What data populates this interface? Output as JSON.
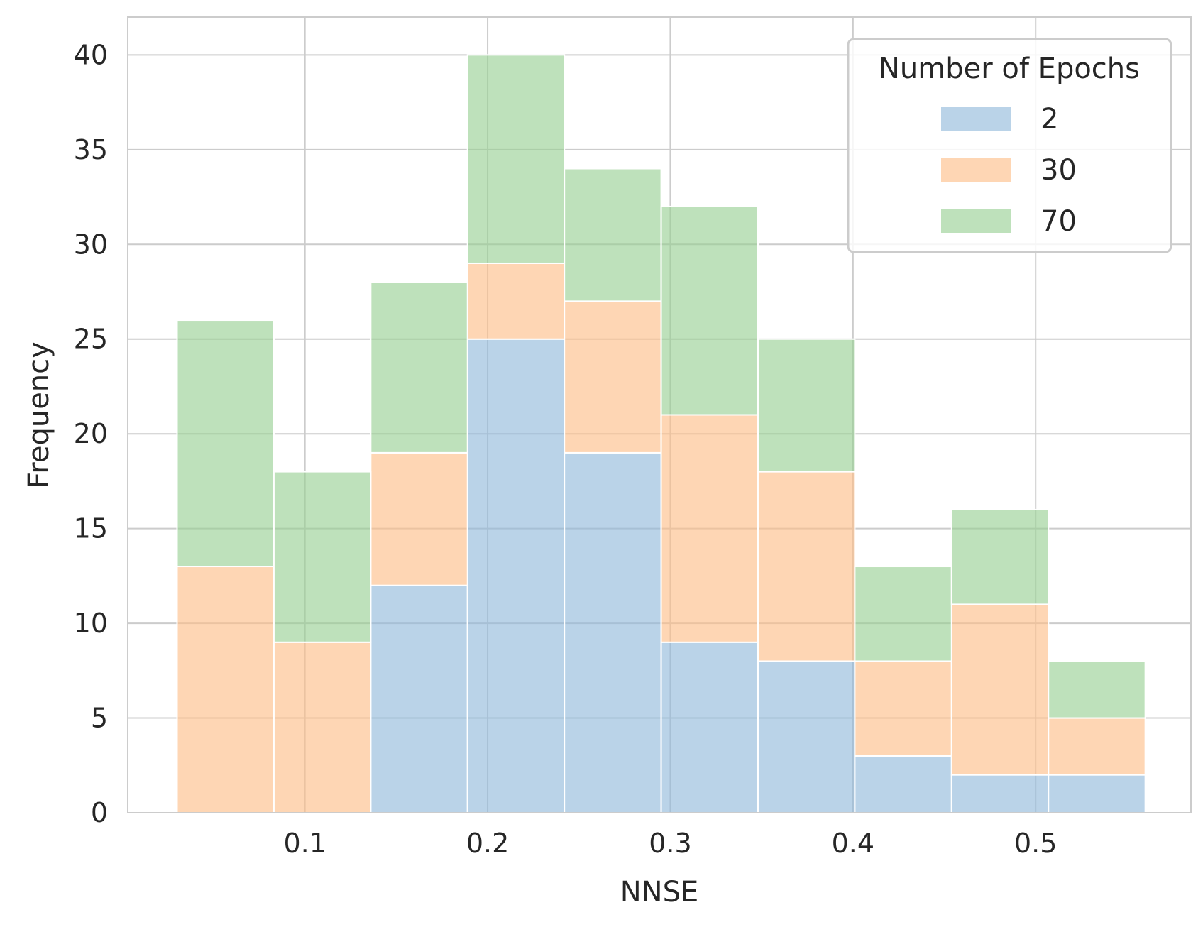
{
  "chart_data": {
    "type": "bar",
    "subtype": "stacked-histogram",
    "title": "",
    "xlabel": "NNSE",
    "ylabel": "Frequency",
    "xlim": [
      0.003,
      0.585
    ],
    "ylim": [
      0,
      42
    ],
    "x_ticks": [
      0.1,
      0.2,
      0.3,
      0.4,
      0.5
    ],
    "x_tick_labels": [
      "0.1",
      "0.2",
      "0.3",
      "0.4",
      "0.5"
    ],
    "y_ticks": [
      0,
      5,
      10,
      15,
      20,
      25,
      30,
      35,
      40
    ],
    "y_tick_labels": [
      "0",
      "5",
      "10",
      "15",
      "20",
      "25",
      "30",
      "35",
      "40"
    ],
    "bin_edges": [
      0.03,
      0.083,
      0.136,
      0.189,
      0.242,
      0.295,
      0.348,
      0.401,
      0.454,
      0.507,
      0.56
    ],
    "series": [
      {
        "name": "2",
        "color": "#8fb8da",
        "values": [
          0,
          0,
          12,
          25,
          19,
          9,
          8,
          3,
          2,
          2
        ]
      },
      {
        "name": "30",
        "color": "#febd86",
        "values": [
          13,
          9,
          7,
          4,
          8,
          12,
          10,
          5,
          9,
          3
        ]
      },
      {
        "name": "70",
        "color": "#96ce91",
        "values": [
          13,
          9,
          9,
          11,
          7,
          11,
          7,
          5,
          5,
          3
        ]
      }
    ],
    "legend": {
      "title": "Number of Epochs",
      "position": "top-right"
    },
    "grid": true,
    "grid_color": "#cccccc",
    "axis_color": "#cccccc",
    "edge_color": "#ffffff",
    "overlap_alpha": 0.62
  }
}
